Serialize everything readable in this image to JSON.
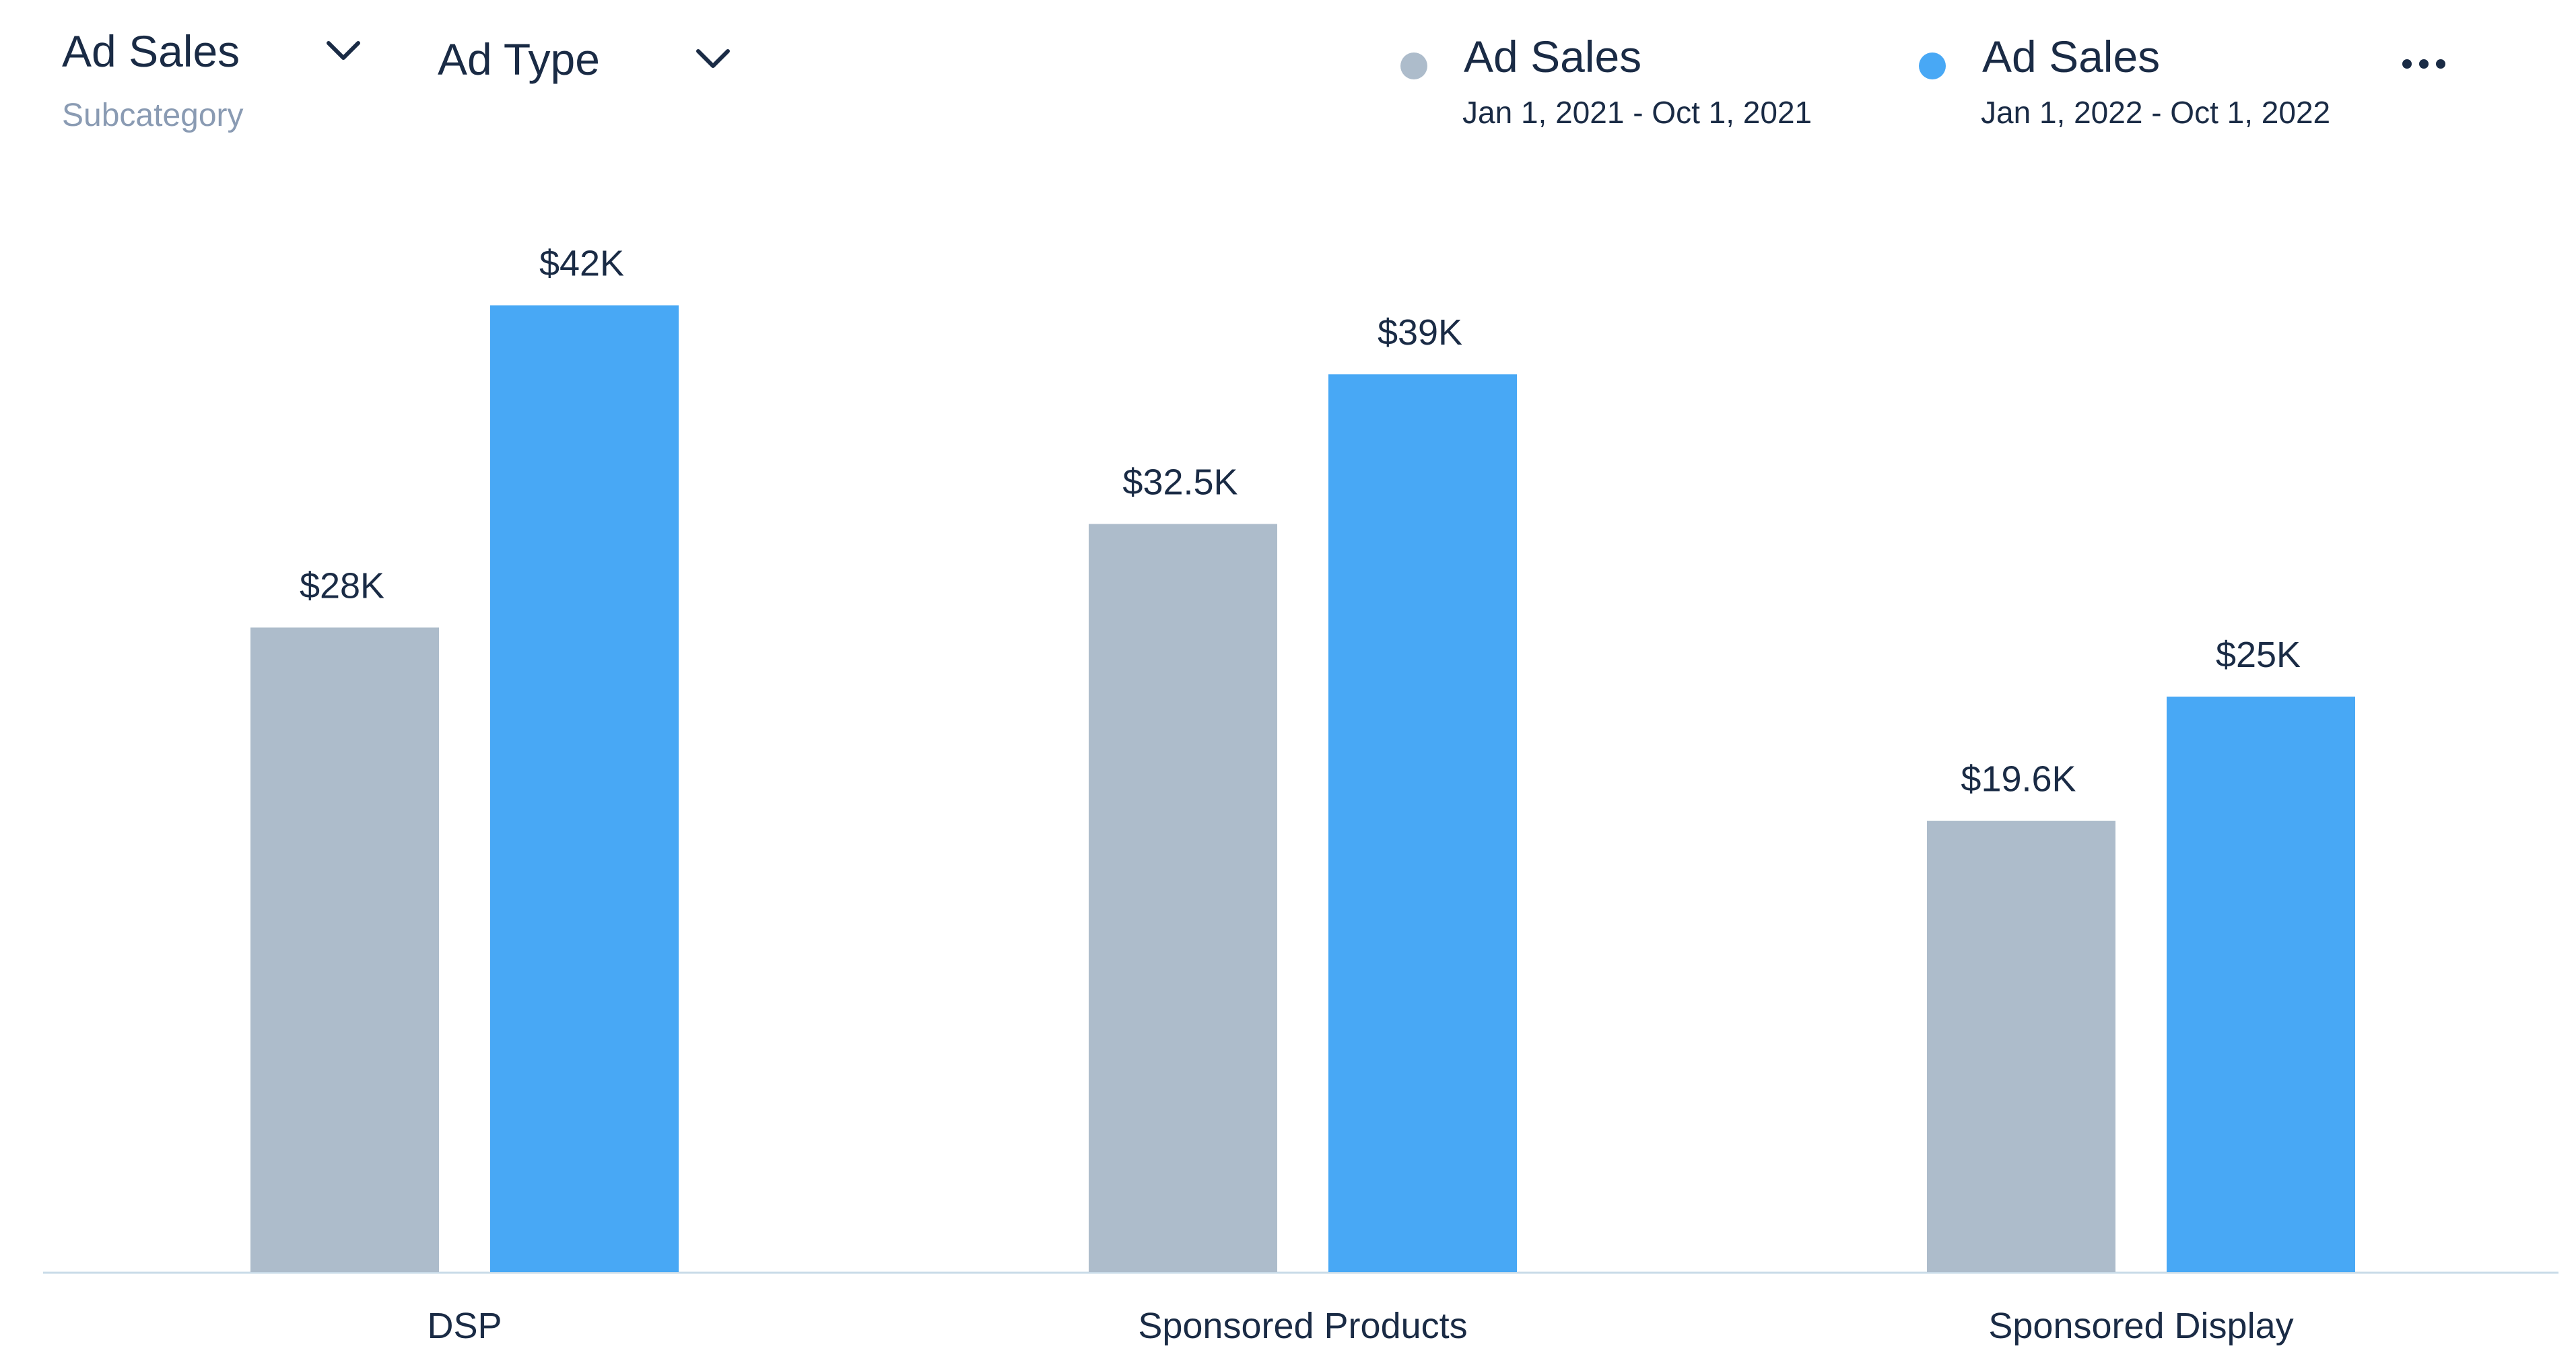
{
  "header": {
    "metric_label": "Ad Sales",
    "metric_sublabel": "Subcategory",
    "dimension_label": "Ad Type",
    "more_icon": "more-horizontal-icon"
  },
  "legend": [
    {
      "title": "Ad Sales",
      "range": "Jan 1, 2021 - Oct 1, 2021",
      "color": "#adbccb"
    },
    {
      "title": "Ad Sales",
      "range": "Jan 1, 2022 - Oct 1, 2022",
      "color": "#48a8f5"
    }
  ],
  "chart_data": {
    "type": "bar",
    "categories": [
      "DSP",
      "Sponsored Products",
      "Sponsored Display"
    ],
    "series": [
      {
        "name": "Ad Sales Jan 1, 2021 - Oct 1, 2021",
        "values": [
          28000,
          32500,
          19600
        ],
        "labels": [
          "$28K",
          "$32.5K",
          "$19.6K"
        ],
        "color": "#adbccb"
      },
      {
        "name": "Ad Sales Jan 1, 2022 - Oct 1, 2022",
        "values": [
          42000,
          39000,
          25000
        ],
        "labels": [
          "$42K",
          "$39K",
          "$25K"
        ],
        "color": "#48a8f5"
      }
    ],
    "ylim": [
      0,
      50000
    ],
    "grid": false,
    "legend_position": "top-right"
  }
}
